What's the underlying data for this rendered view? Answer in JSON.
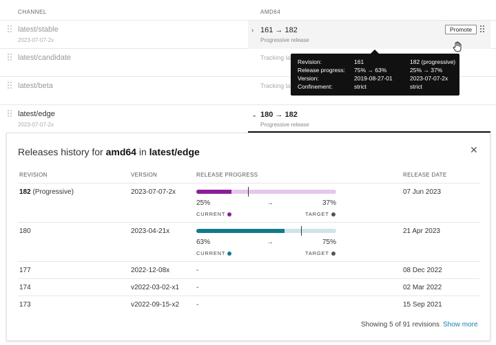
{
  "header": {
    "channel_label": "CHANNEL",
    "arch_label": "AMD64"
  },
  "channels": [
    {
      "name": "latest/stable",
      "date": "2023-07-07-2x",
      "revision": "161 → 182",
      "subtitle": "Progressive release"
    },
    {
      "name": "latest/candidate",
      "date": "",
      "revision": "",
      "subtitle": "Tracking la"
    },
    {
      "name": "latest/beta",
      "date": "",
      "revision": "",
      "subtitle": "Tracking la"
    },
    {
      "name": "latest/edge",
      "date": "2023-07-07-2x",
      "revision": "180 → 182",
      "subtitle": "Progressive release"
    }
  ],
  "promote_label": "Promote",
  "tooltip": {
    "labels": [
      "Revision:",
      "Release progress:",
      "Version:",
      "Confinement:"
    ],
    "col1": [
      "161",
      "75% → 63%",
      "2019-08-27-01",
      "strict"
    ],
    "col2": [
      "182 (progressive)",
      "25% → 37%",
      "2023-07-07-2x",
      "strict"
    ]
  },
  "history": {
    "title_prefix": "Releases history for ",
    "arch": "amd64",
    "title_mid": " in ",
    "channel": "latest/edge",
    "columns": [
      "REVISION",
      "VERSION",
      "RELEASE PROGRESS",
      "RELEASE DATE"
    ],
    "rows": [
      {
        "revision": "182",
        "revision_note": " (Progressive)",
        "version": "2023-07-07-2x",
        "current": 25,
        "target": 37,
        "current_label": "25%",
        "target_label": "37%",
        "current_text": "CURRENT",
        "target_text": "TARGET",
        "color": "#8a1e99",
        "track": "#e6c7ec",
        "date": "07 Jun 2023"
      },
      {
        "revision": "180",
        "revision_note": "",
        "version": "2023-04-21x",
        "current": 63,
        "target": 75,
        "current_label": "63%",
        "target_label": "75%",
        "current_text": "CURRENT",
        "target_text": "TARGET",
        "color": "#117a8b",
        "track": "#cfe3ea",
        "date": "21 Apr 2023"
      },
      {
        "revision": "177",
        "revision_note": "",
        "version": "2022-12-08x",
        "progress": "-",
        "date": "08 Dec 2022"
      },
      {
        "revision": "174",
        "revision_note": "",
        "version": "v2022-03-02-x1",
        "progress": "-",
        "date": "02 Mar 2022"
      },
      {
        "revision": "173",
        "revision_note": "",
        "version": "v2022-09-15-x2",
        "progress": "-",
        "date": "15 Sep 2021"
      }
    ],
    "showing": "Showing 5 of 91 revisions",
    "show_more": "Show more"
  },
  "colors": {
    "link": "#1a7fb4",
    "target_dot": "#555555"
  }
}
